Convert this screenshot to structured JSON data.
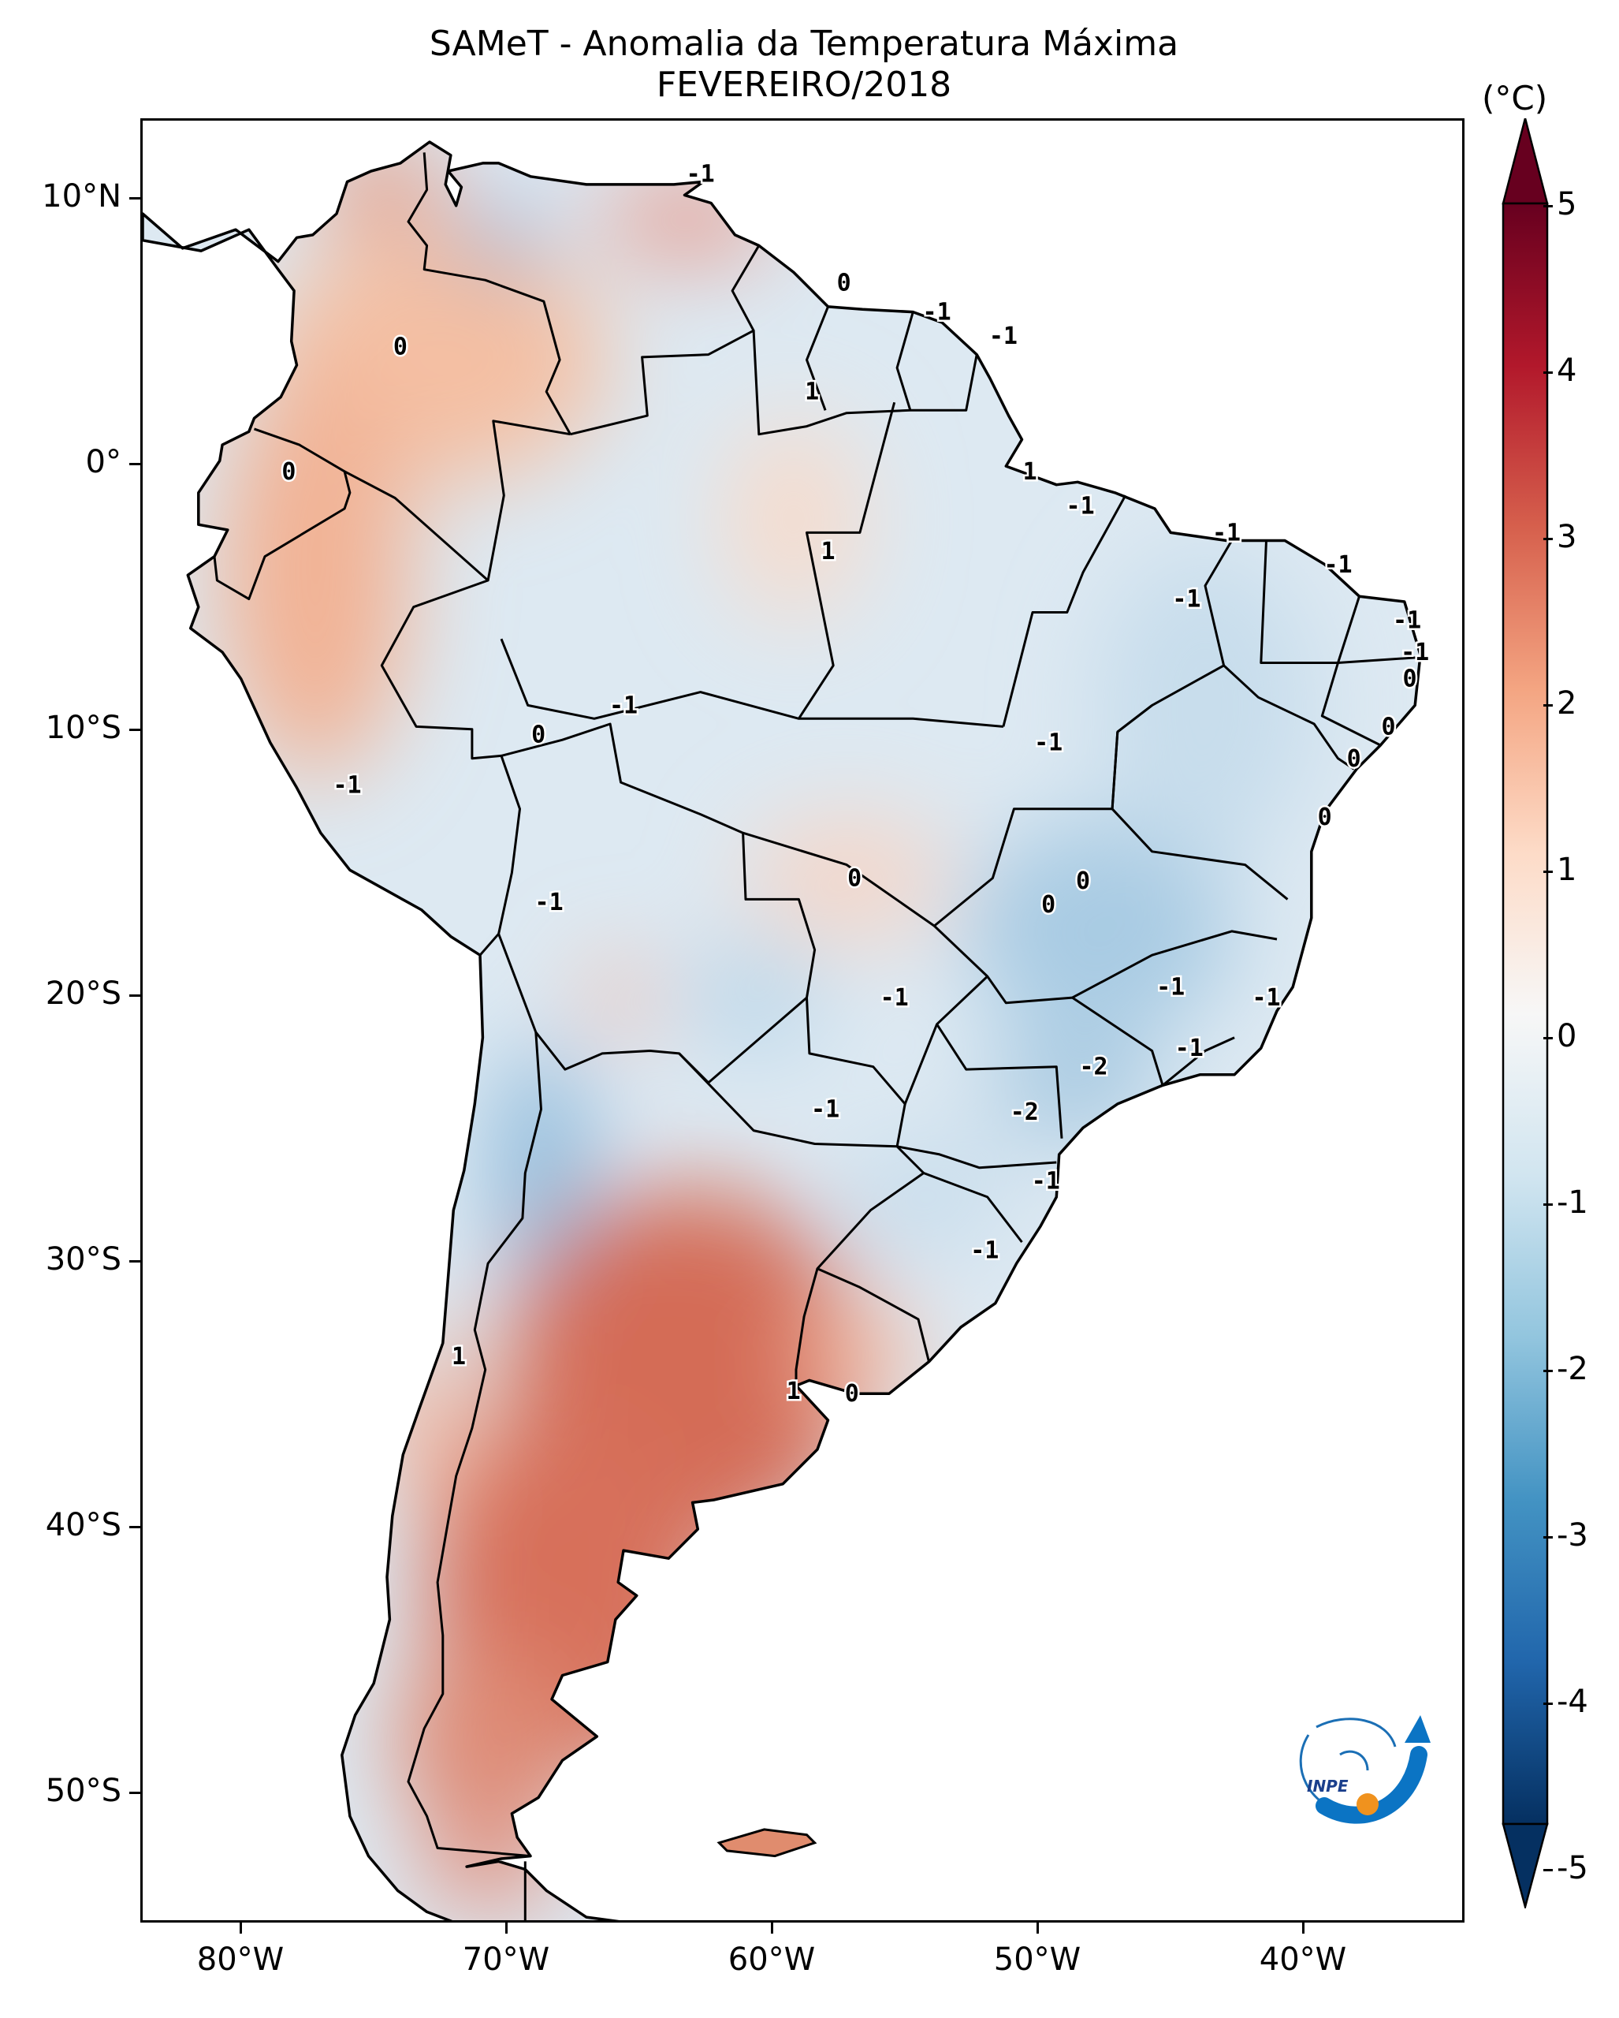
{
  "title": "SAMeT - Anomalia da Temperatura Máxima",
  "subtitle": "FEVEREIRO/2018",
  "colorbar": {
    "unit": "(°C)",
    "labels": [
      "5",
      "4",
      "3",
      "2",
      "1",
      "0",
      "-1",
      "-2",
      "-3",
      "-4",
      "-5"
    ],
    "colormap": "RdBu_r",
    "range": [
      -5,
      5
    ],
    "extend": "both"
  },
  "axes": {
    "lat_labels": [
      "10°N",
      "0°",
      "10°S",
      "20°S",
      "30°S",
      "40°S",
      "50°S"
    ],
    "lon_labels": [
      "80°W",
      "70°W",
      "60°W",
      "50°W",
      "40°W"
    ]
  },
  "contour_labels": [
    {
      "text": "-1",
      "lon": -62.0,
      "lat": 11.0
    },
    {
      "text": "0",
      "lon": -73.3,
      "lat": 4.5
    },
    {
      "text": "0",
      "lon": -56.6,
      "lat": 6.9
    },
    {
      "text": "-1",
      "lon": -53.1,
      "lat": 5.8
    },
    {
      "text": "-1",
      "lon": -50.6,
      "lat": 4.9
    },
    {
      "text": "1",
      "lon": -57.8,
      "lat": 2.8
    },
    {
      "text": "0",
      "lon": -77.5,
      "lat": -0.2
    },
    {
      "text": "1",
      "lon": -49.6,
      "lat": -0.2
    },
    {
      "text": "-1",
      "lon": -47.7,
      "lat": -1.5
    },
    {
      "text": "1",
      "lon": -57.2,
      "lat": -3.2
    },
    {
      "text": "-1",
      "lon": -42.2,
      "lat": -2.5
    },
    {
      "text": "-1",
      "lon": -38.0,
      "lat": -3.7
    },
    {
      "text": "-1",
      "lon": -43.7,
      "lat": -5.0
    },
    {
      "text": "-1",
      "lon": -35.4,
      "lat": -5.8
    },
    {
      "text": "-1",
      "lon": -35.1,
      "lat": -7.0
    },
    {
      "text": "0",
      "lon": -35.3,
      "lat": -8.0
    },
    {
      "text": "-1",
      "lon": -64.9,
      "lat": -9.0
    },
    {
      "text": "0",
      "lon": -68.1,
      "lat": -10.1
    },
    {
      "text": "0",
      "lon": -36.1,
      "lat": -9.8
    },
    {
      "text": "0",
      "lon": -37.4,
      "lat": -11.0
    },
    {
      "text": "-1",
      "lon": -48.9,
      "lat": -10.4
    },
    {
      "text": "-1",
      "lon": -75.3,
      "lat": -12.0
    },
    {
      "text": "0",
      "lon": -38.5,
      "lat": -13.2
    },
    {
      "text": "0",
      "lon": -56.2,
      "lat": -15.5
    },
    {
      "text": "0",
      "lon": -47.6,
      "lat": -15.6
    },
    {
      "text": "0",
      "lon": -48.9,
      "lat": -16.5
    },
    {
      "text": "-1",
      "lon": -67.7,
      "lat": -16.4
    },
    {
      "text": "-1",
      "lon": -54.7,
      "lat": -20.0
    },
    {
      "text": "-1",
      "lon": -44.3,
      "lat": -19.6
    },
    {
      "text": "-1",
      "lon": -40.7,
      "lat": -20.0
    },
    {
      "text": "-2",
      "lon": -47.2,
      "lat": -22.6
    },
    {
      "text": "-1",
      "lon": -43.6,
      "lat": -21.9
    },
    {
      "text": "-1",
      "lon": -57.3,
      "lat": -24.2
    },
    {
      "text": "-2",
      "lon": -49.8,
      "lat": -24.3
    },
    {
      "text": "-1",
      "lon": -49.0,
      "lat": -26.9
    },
    {
      "text": "-1",
      "lon": -51.3,
      "lat": -29.5
    },
    {
      "text": "1",
      "lon": -71.1,
      "lat": -33.5
    },
    {
      "text": "1",
      "lon": -58.5,
      "lat": -34.8
    },
    {
      "text": "0",
      "lon": -56.3,
      "lat": -34.9
    }
  ]
}
